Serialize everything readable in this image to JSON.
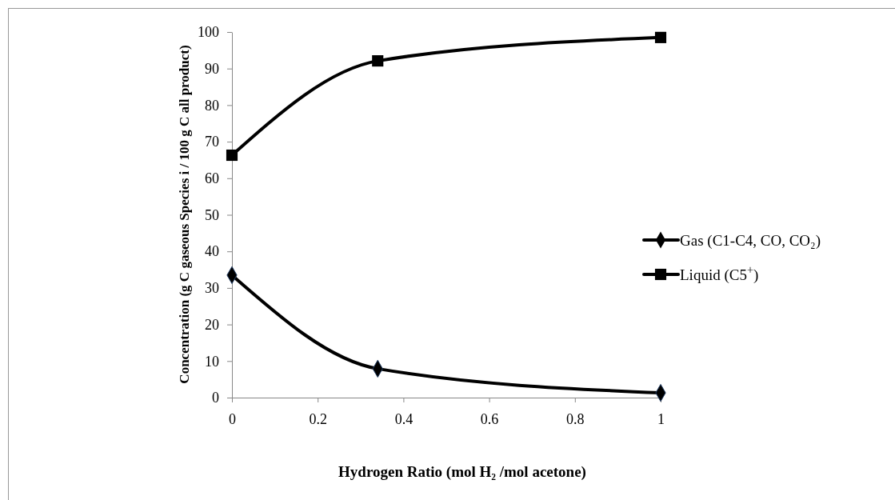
{
  "chart_data": {
    "type": "line",
    "xlabel": "Hydrogen Ratio (mol H₂ /mol acetone)",
    "ylabel": "Concentration (g C gaseous Species i / 100 g C all product)",
    "x": [
      0,
      0.34,
      1
    ],
    "series": [
      {
        "name": "Gas (C1-C4, CO, CO₂)",
        "color": "#000000",
        "marker": "diamond",
        "values": [
          33.5,
          7.9,
          1.3
        ]
      },
      {
        "name": "Liquid (C5$^{+}$)",
        "color": "#000000",
        "marker": "square",
        "values": [
          66.3,
          92.1,
          98.5
        ]
      }
    ],
    "xlim": [
      0,
      1
    ],
    "xticks": [
      0,
      0.2,
      0.4,
      0.6,
      0.8,
      1
    ],
    "ylim": [
      0,
      100
    ],
    "yticks": [
      0,
      10,
      20,
      30,
      40,
      50,
      60,
      70,
      80,
      90,
      100
    ],
    "grid": false,
    "legend": "right",
    "line_style": "solid"
  }
}
